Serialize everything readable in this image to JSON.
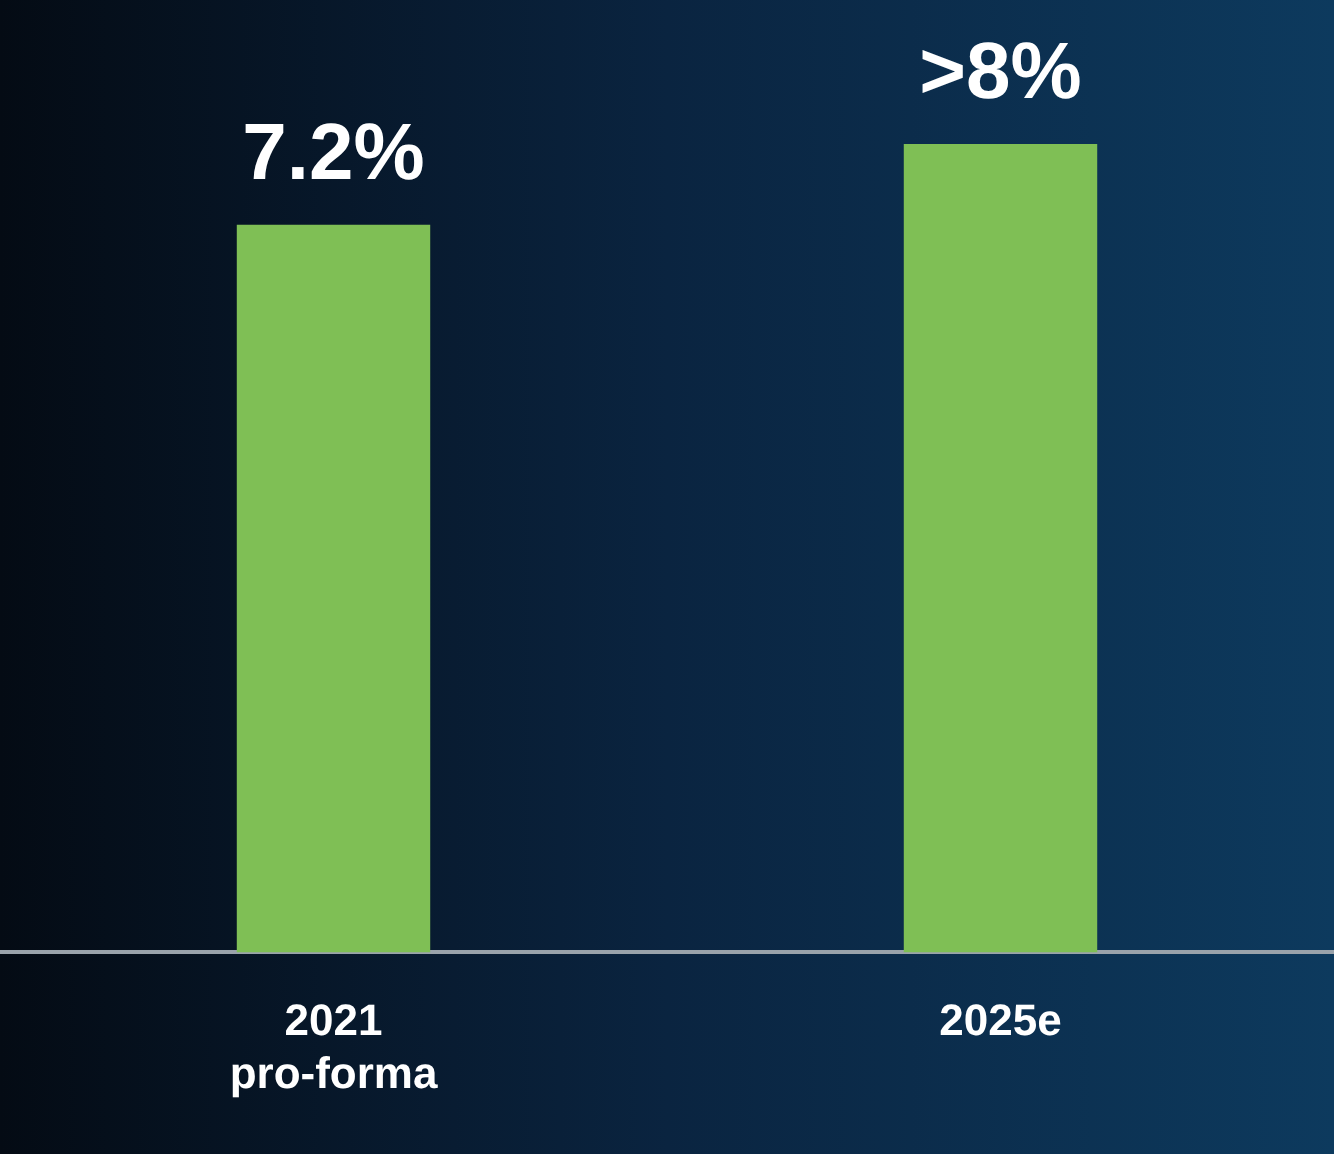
{
  "chart_data": {
    "type": "bar",
    "categories": [
      "2021 pro-forma",
      "2025e"
    ],
    "values": [
      7.2,
      8
    ],
    "value_labels": [
      "7.2%",
      ">8%"
    ],
    "color": "#7fbf55",
    "grid": false,
    "legend": false
  }
}
